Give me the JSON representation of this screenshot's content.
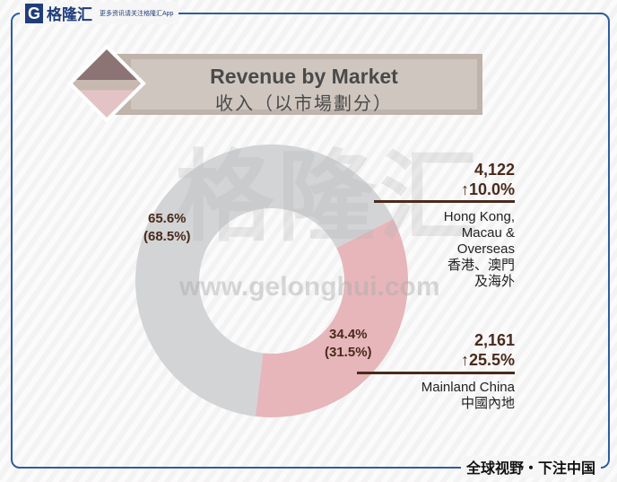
{
  "header": {
    "logo_mark": "G",
    "logo_name": "格隆汇",
    "logo_tagline": "更多资讯请关注格隆汇App"
  },
  "watermark": {
    "cn": "格隆汇",
    "url": "www.gelonghui.com"
  },
  "footer": {
    "slogan": "全球视野・下注中国"
  },
  "colors": {
    "frame": "#2f5d9f",
    "gray_segment": "#d3d4d6",
    "pink_segment": "#e6b6ba",
    "text": "#4a2a1c"
  },
  "chart_data": {
    "type": "pie",
    "donut": true,
    "title": "Revenue by Market",
    "subtitle": "收入（以市場劃分）",
    "slices": [
      {
        "name": "Hong Kong, Macau & Overseas",
        "name_cn": "香港、澳門及海外",
        "share": 65.6,
        "share_label": "65.6%",
        "prior_share_label": "(68.5%)",
        "value": 4122,
        "value_label": "4,122",
        "growth_label": "↑10.0%",
        "color": "#d3d4d6"
      },
      {
        "name": "Mainland China",
        "name_cn": "中國內地",
        "share": 34.4,
        "share_label": "34.4%",
        "prior_share_label": "(31.5%)",
        "value": 2161,
        "value_label": "2,161",
        "growth_label": "↑25.5%",
        "color": "#e6b6ba"
      }
    ]
  }
}
